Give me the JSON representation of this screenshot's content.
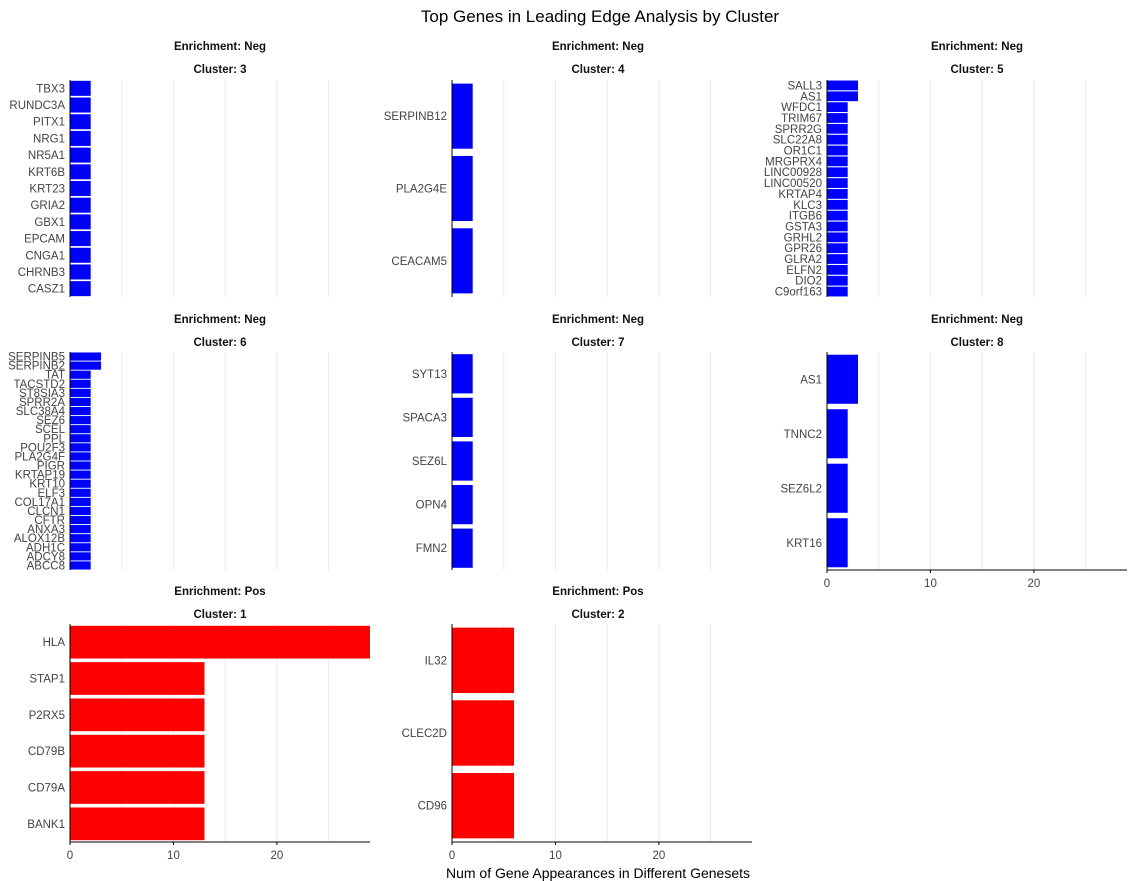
{
  "chart_data": {
    "type": "bar",
    "orientation": "horizontal",
    "title": "Top Genes in Leading Edge Analysis by Cluster",
    "xlabel": "Num of Gene Appearances in Different Genesets",
    "ylabel": "",
    "xlim": [
      0,
      29
    ],
    "xticks": [
      0,
      10,
      20
    ],
    "grid": true,
    "colors": {
      "Neg": "#0000ff",
      "Pos": "#ff0000"
    },
    "facets": [
      {
        "enrichment_label": "Enrichment: Neg",
        "cluster_label": "Cluster: 3",
        "enrichment": "Neg",
        "categories": [
          "TBX3",
          "RUNDC3A",
          "PITX1",
          "NRG1",
          "NR5A1",
          "KRT6B",
          "KRT23",
          "GRIA2",
          "GBX1",
          "EPCAM",
          "CNGA1",
          "CHRNB3",
          "CASZ1"
        ],
        "values": [
          2,
          2,
          2,
          2,
          2,
          2,
          2,
          2,
          2,
          2,
          2,
          2,
          2
        ]
      },
      {
        "enrichment_label": "Enrichment: Neg",
        "cluster_label": "Cluster: 4",
        "enrichment": "Neg",
        "categories": [
          "SERPINB12",
          "PLA2G4E",
          "CEACAM5"
        ],
        "values": [
          2,
          2,
          2
        ]
      },
      {
        "enrichment_label": "Enrichment: Neg",
        "cluster_label": "Cluster: 5",
        "enrichment": "Neg",
        "categories": [
          "SALL3",
          "AS1",
          "WFDC1",
          "TRIM67",
          "SPRR2G",
          "SLC22A8",
          "OR1C1",
          "MRGPRX4",
          "LINC00928",
          "LINC00520",
          "KRTAP4",
          "KLC3",
          "ITGB6",
          "GSTA3",
          "GRHL2",
          "GPR26",
          "GLRA2",
          "ELFN2",
          "DIO2",
          "C9orf163"
        ],
        "values": [
          3,
          3,
          2,
          2,
          2,
          2,
          2,
          2,
          2,
          2,
          2,
          2,
          2,
          2,
          2,
          2,
          2,
          2,
          2,
          2
        ]
      },
      {
        "enrichment_label": "Enrichment: Neg",
        "cluster_label": "Cluster: 6",
        "enrichment": "Neg",
        "categories": [
          "SERPINB5",
          "SERPINB2",
          "TAT",
          "TACSTD2",
          "ST8SIA3",
          "SPRR2A",
          "SLC38A4",
          "SEZ6",
          "SCEL",
          "PPL",
          "POU2F3",
          "PLA2G4F",
          "PIGR",
          "KRTAP19",
          "KRT10",
          "ELF3",
          "COL17A1",
          "CLCN1",
          "CFTR",
          "ANXA3",
          "ALOX12B",
          "ADH1C",
          "ADCY8",
          "ABCC8"
        ],
        "values": [
          3,
          3,
          2,
          2,
          2,
          2,
          2,
          2,
          2,
          2,
          2,
          2,
          2,
          2,
          2,
          2,
          2,
          2,
          2,
          2,
          2,
          2,
          2,
          2
        ]
      },
      {
        "enrichment_label": "Enrichment: Neg",
        "cluster_label": "Cluster: 7",
        "enrichment": "Neg",
        "categories": [
          "SYT13",
          "SPACA3",
          "SEZ6L",
          "OPN4",
          "FMN2"
        ],
        "values": [
          2,
          2,
          2,
          2,
          2
        ]
      },
      {
        "enrichment_label": "Enrichment: Neg",
        "cluster_label": "Cluster: 8",
        "enrichment": "Neg",
        "categories": [
          "AS1",
          "TNNC2",
          "SEZ6L2",
          "KRT16"
        ],
        "values": [
          3,
          2,
          2,
          2
        ]
      },
      {
        "enrichment_label": "Enrichment: Pos",
        "cluster_label": "Cluster: 1",
        "enrichment": "Pos",
        "categories": [
          "HLA",
          "STAP1",
          "P2RX5",
          "CD79B",
          "CD79A",
          "BANK1"
        ],
        "values": [
          29,
          13,
          13,
          13,
          13,
          13
        ]
      },
      {
        "enrichment_label": "Enrichment: Pos",
        "cluster_label": "Cluster: 2",
        "enrichment": "Pos",
        "categories": [
          "IL32",
          "CLEC2D",
          "CD96"
        ],
        "values": [
          6,
          6,
          6
        ]
      }
    ]
  }
}
